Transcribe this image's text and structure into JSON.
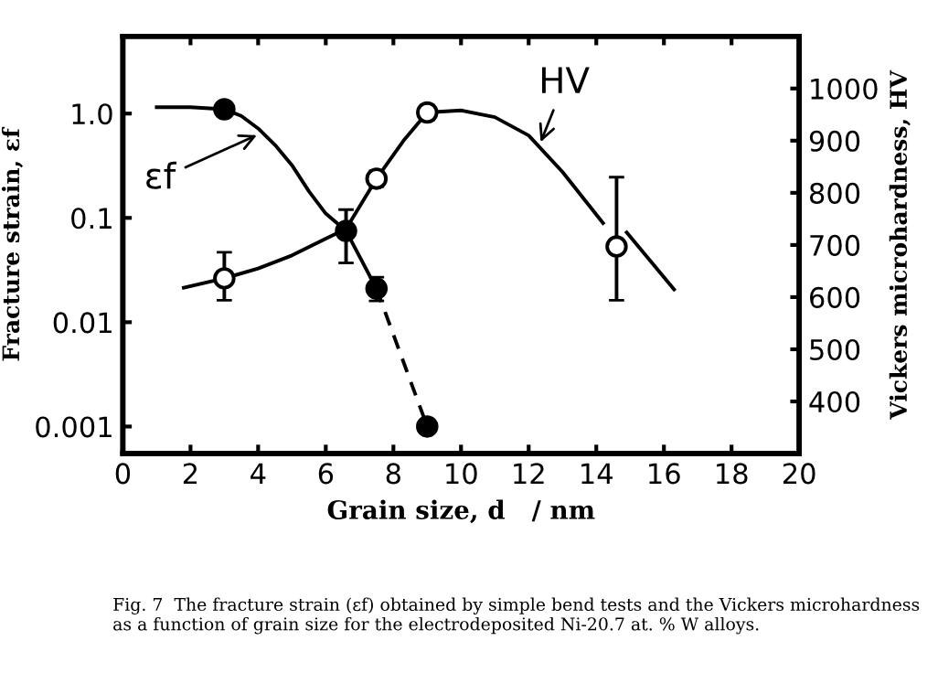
{
  "chart_data": {
    "type": "line",
    "xlabel": "Grain size, d   / nm",
    "ylabel": "Fracture strain, εf",
    "y2label": "Vickers microhardness, HV",
    "xlim": [
      0,
      20
    ],
    "xticks": [
      0,
      2,
      4,
      6,
      8,
      10,
      12,
      14,
      16,
      18,
      20
    ],
    "log": "y",
    "ylim": [
      0.00055,
      5.5
    ],
    "yticks": [
      0.001,
      0.01,
      0.1,
      {
        "value": 1,
        "label": "1.0"
      }
    ],
    "y2lim": [
      300,
      1100
    ],
    "y2ticks": [
      400,
      500,
      600,
      700,
      800,
      900,
      1000
    ],
    "grid": false,
    "legend": false,
    "series": [
      {
        "color": "#000000",
        "marker": "none",
        "line_style": "solid",
        "x": [
          1,
          2,
          3,
          3.5,
          4,
          4.5,
          5,
          5.5,
          6,
          6.6,
          7.5
        ],
        "values": [
          1.15,
          1.15,
          1.1,
          0.95,
          0.72,
          0.5,
          0.32,
          0.18,
          0.11,
          0.075,
          0.021
        ]
      },
      {
        "color": "#000000",
        "marker": "none",
        "line_style": "dashed",
        "x": [
          7.5,
          9
        ],
        "values": [
          0.021,
          0.001
        ]
      },
      {
        "type": "scatter",
        "color": "#000000",
        "marker": "circle",
        "x": [
          3,
          6.6,
          7.5,
          9
        ],
        "values": [
          1.1,
          0.075,
          0.021,
          0.001
        ],
        "errors": [
          null,
          [
            0.037,
            0.12
          ],
          [
            0.016,
            0.027
          ],
          null
        ]
      },
      {
        "axis": "y2",
        "color": "#000000",
        "marker": "none",
        "line_style": "solid",
        "x": [
          1.8,
          3,
          4,
          5,
          6,
          6.6,
          7.5,
          8.3,
          9,
          10,
          11,
          12,
          13,
          14.2
        ],
        "values": [
          618,
          636,
          655,
          680,
          712,
          731,
          827,
          900,
          954,
          958,
          945,
          910,
          840,
          742
        ]
      },
      {
        "axis": "y2",
        "color": "#000000",
        "marker": "none",
        "line_style": "solid",
        "x": [
          14.9,
          16.3
        ],
        "values": [
          724,
          615
        ]
      },
      {
        "type": "scatter",
        "axis": "y2",
        "color": "#000000",
        "marker": "circle",
        "x": [
          3,
          7.5,
          9,
          14.6
        ],
        "values": [
          636,
          827,
          954,
          697
        ],
        "errors": [
          [
            594,
            686
          ],
          [
            812,
            842
          ],
          [
            940,
            968
          ],
          [
            594,
            830
          ]
        ]
      }
    ],
    "annotations": [
      {
        "text": "εf",
        "x": 4.1,
        "y": 0.65
      },
      {
        "text": "HV",
        "x": 12.3,
        "y": 0.48
      },
      "Fig. 7  The fracture strain (εf) obtained by simple bend tests and the Vickers microhardness as a function of grain size for the electrodeposited Ni-20.7 at. % W alloys."
    ]
  }
}
